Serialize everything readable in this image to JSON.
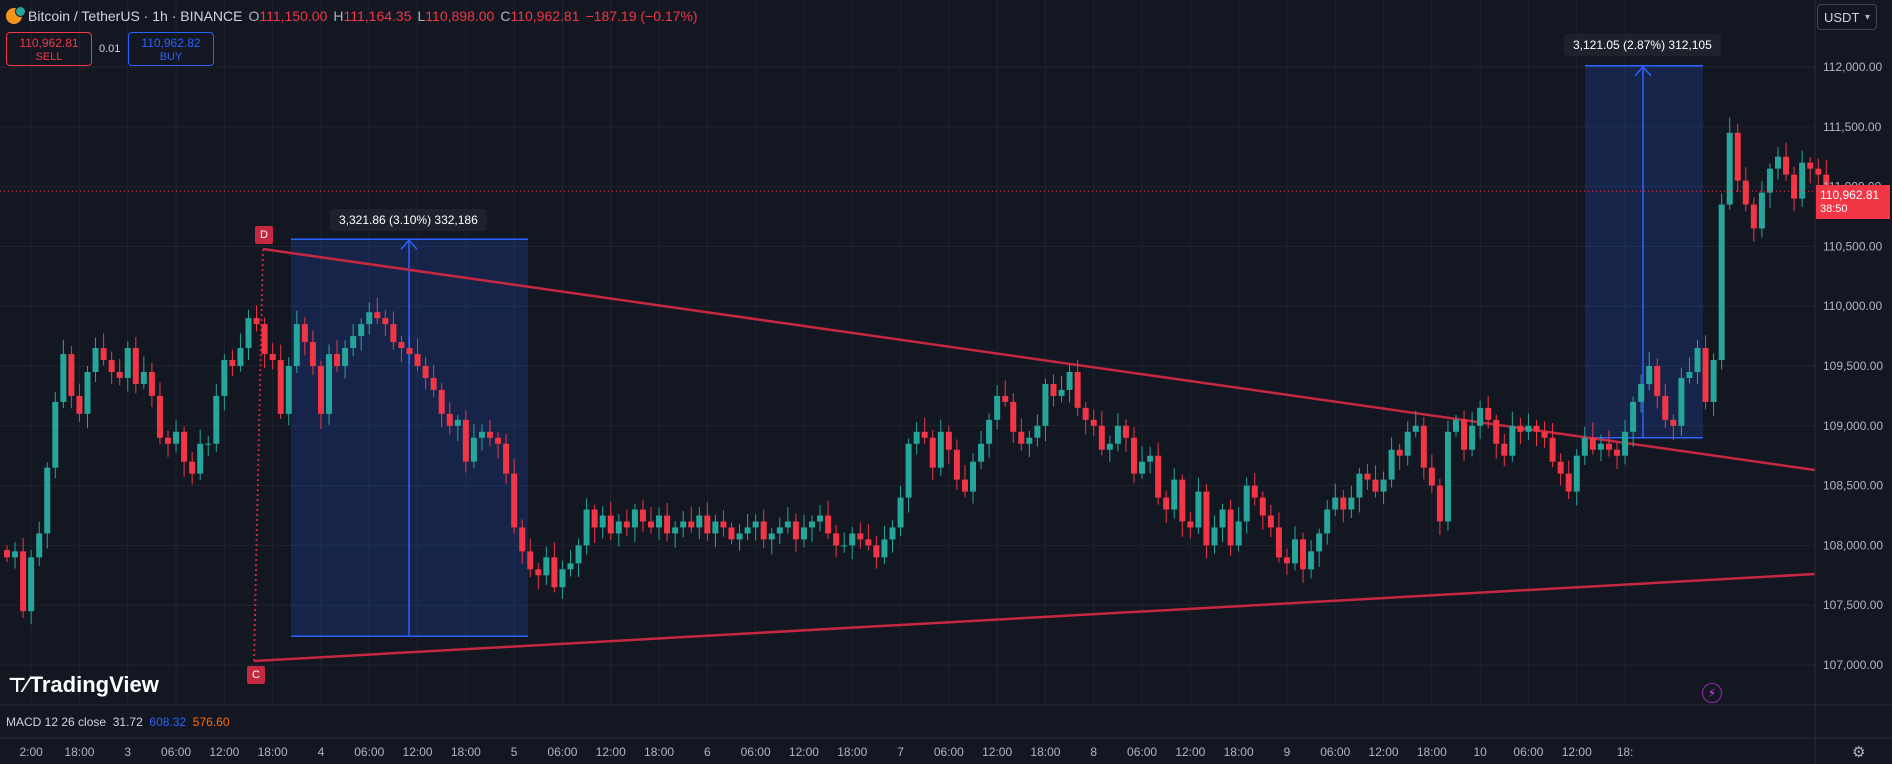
{
  "header": {
    "symbol": "Bitcoin / TetherUS · 1h · BINANCE",
    "open_label": "O",
    "open": "111,150.00",
    "high_label": "H",
    "high": "111,164.35",
    "low_label": "L",
    "low": "110,898.00",
    "close_label": "C",
    "close": "110,962.81",
    "change": "−187.19 (−0.17%)"
  },
  "trade": {
    "sell_price": "110,962.81",
    "sell_label": "SELL",
    "spread": "0.01",
    "buy_price": "110,962.82",
    "buy_label": "BUY"
  },
  "currency": "USDT",
  "price_tag": {
    "price": "110,962.81",
    "countdown": "38:50"
  },
  "measures": [
    {
      "label": "3,321.86 (3.10%) 332,186"
    },
    {
      "label": "3,121.05 (2.87%) 312,105"
    }
  ],
  "points": {
    "d": "D",
    "c": "C"
  },
  "brand": "TradingView",
  "macd": {
    "label": "MACD 12 26 close",
    "v1": "31.72",
    "v2": "608.32",
    "v3": "576.60"
  },
  "colors": {
    "up": "#26a69a",
    "down": "#f23645",
    "trendline": "#c62841",
    "measure": "#2962ff",
    "background": "#131722"
  },
  "chart_data": {
    "type": "candlestick",
    "ylim": [
      106700,
      112300
    ],
    "y_ticks": [
      "112,000.00",
      "111,500.00",
      "111,000.00",
      "110,500.00",
      "110,000.00",
      "109,500.00",
      "109,000.00",
      "108,500.00",
      "108,000.00",
      "107,500.00",
      "107,000.00"
    ],
    "x_ticks": [
      {
        "i": 3,
        "label": "2:00"
      },
      {
        "i": 9,
        "label": "18:00"
      },
      {
        "i": 15,
        "label": "3"
      },
      {
        "i": 21,
        "label": "06:00"
      },
      {
        "i": 27,
        "label": "12:00"
      },
      {
        "i": 33,
        "label": "18:00"
      },
      {
        "i": 39,
        "label": "4"
      },
      {
        "i": 45,
        "label": "06:00"
      },
      {
        "i": 51,
        "label": "12:00"
      },
      {
        "i": 57,
        "label": "18:00"
      },
      {
        "i": 63,
        "label": "5"
      },
      {
        "i": 69,
        "label": "06:00"
      },
      {
        "i": 75,
        "label": "12:00"
      },
      {
        "i": 81,
        "label": "18:00"
      },
      {
        "i": 87,
        "label": "6"
      },
      {
        "i": 93,
        "label": "06:00"
      },
      {
        "i": 99,
        "label": "12:00"
      },
      {
        "i": 105,
        "label": "18:00"
      },
      {
        "i": 111,
        "label": "7"
      },
      {
        "i": 117,
        "label": "06:00"
      },
      {
        "i": 123,
        "label": "12:00"
      },
      {
        "i": 129,
        "label": "18:00"
      },
      {
        "i": 135,
        "label": "8"
      },
      {
        "i": 141,
        "label": "06:00"
      },
      {
        "i": 147,
        "label": "12:00"
      },
      {
        "i": 153,
        "label": "18:00"
      },
      {
        "i": 159,
        "label": "9"
      },
      {
        "i": 165,
        "label": "06:00"
      },
      {
        "i": 171,
        "label": "12:00"
      },
      {
        "i": 177,
        "label": "18:00"
      },
      {
        "i": 183,
        "label": "10"
      },
      {
        "i": 189,
        "label": "06:00"
      },
      {
        "i": 195,
        "label": "12:00"
      },
      {
        "i": 201,
        "label": "18:"
      }
    ],
    "closes": [
      107900,
      107950,
      107450,
      107900,
      108100,
      108650,
      109200,
      109600,
      109250,
      109100,
      109450,
      109650,
      109550,
      109450,
      109400,
      109650,
      109350,
      109450,
      109250,
      108900,
      108850,
      108950,
      108700,
      108600,
      108850,
      108850,
      109250,
      109550,
      109500,
      109650,
      109900,
      109850,
      109600,
      109550,
      109100,
      109500,
      109850,
      109700,
      109500,
      109100,
      109600,
      109500,
      109650,
      109750,
      109850,
      109950,
      109900,
      109850,
      109700,
      109650,
      109600,
      109500,
      109400,
      109300,
      109100,
      109000,
      109050,
      108700,
      108900,
      108950,
      108900,
      108850,
      108600,
      108150,
      107950,
      107800,
      107750,
      107900,
      107650,
      107800,
      107850,
      108000,
      108300,
      108150,
      108250,
      108100,
      108200,
      108150,
      108300,
      108200,
      108150,
      108250,
      108100,
      108150,
      108200,
      108150,
      108250,
      108100,
      108200,
      108150,
      108050,
      108100,
      108150,
      108200,
      108050,
      108100,
      108150,
      108200,
      108050,
      108150,
      108200,
      108250,
      108100,
      108000,
      108000,
      108100,
      108050,
      108000,
      107900,
      108050,
      108150,
      108400,
      108850,
      108950,
      108900,
      108650,
      108950,
      108800,
      108550,
      108450,
      108700,
      108850,
      109050,
      109250,
      109200,
      108950,
      108850,
      108900,
      109000,
      109350,
      109250,
      109300,
      109450,
      109150,
      109050,
      109000,
      108800,
      108850,
      109000,
      108900,
      108600,
      108700,
      108750,
      108400,
      108300,
      108550,
      108200,
      108150,
      108450,
      108000,
      108150,
      108300,
      108000,
      108200,
      108500,
      108400,
      108250,
      108150,
      107900,
      107850,
      108050,
      107800,
      107950,
      108100,
      108300,
      108400,
      108300,
      108400,
      108600,
      108550,
      108450,
      108550,
      108800,
      108750,
      108950,
      109000,
      108650,
      108500,
      108200,
      108950,
      109050,
      108800,
      109000,
      109150,
      109050,
      108850,
      108750,
      109000,
      108950,
      109000,
      108950,
      108900,
      108700,
      108600,
      108450,
      108750,
      108900,
      108800,
      108850,
      108800,
      108750,
      108950,
      109200,
      109350,
      109500,
      109250,
      109050,
      109000,
      109400,
      109450,
      109650,
      109200,
      109550,
      110850,
      111450,
      111050,
      110850,
      110650,
      110950,
      111150,
      111250,
      111100,
      110900,
      111200,
      111150,
      111100,
      110962
    ]
  }
}
